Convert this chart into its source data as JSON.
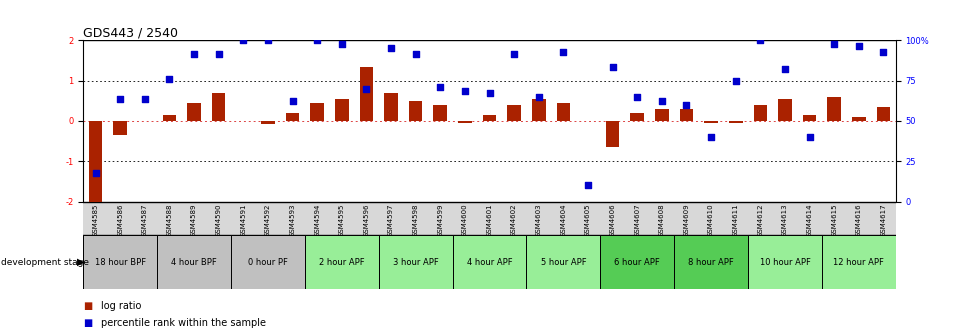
{
  "title": "GDS443 / 2540",
  "samples": [
    "GSM4585",
    "GSM4586",
    "GSM4587",
    "GSM4588",
    "GSM4589",
    "GSM4590",
    "GSM4591",
    "GSM4592",
    "GSM4593",
    "GSM4594",
    "GSM4595",
    "GSM4596",
    "GSM4597",
    "GSM4598",
    "GSM4599",
    "GSM4600",
    "GSM4601",
    "GSM4602",
    "GSM4603",
    "GSM4604",
    "GSM4605",
    "GSM4606",
    "GSM4607",
    "GSM4608",
    "GSM4609",
    "GSM4610",
    "GSM4611",
    "GSM4612",
    "GSM4613",
    "GSM4614",
    "GSM4615",
    "GSM4616",
    "GSM4617"
  ],
  "log_ratio": [
    -2.0,
    -0.35,
    0.0,
    0.15,
    0.45,
    0.7,
    0.0,
    -0.07,
    0.2,
    0.45,
    0.55,
    1.35,
    0.7,
    0.5,
    0.4,
    -0.05,
    0.15,
    0.4,
    0.55,
    0.45,
    0.0,
    -0.65,
    0.2,
    0.3,
    0.3,
    -0.05,
    -0.05,
    0.4,
    0.55,
    0.15,
    0.6,
    0.1,
    0.35
  ],
  "percentile": [
    -1.3,
    0.55,
    0.55,
    1.05,
    1.65,
    1.65,
    2.0,
    2.0,
    0.5,
    2.0,
    1.9,
    0.8,
    1.8,
    1.65,
    0.85,
    0.75,
    0.7,
    1.65,
    0.6,
    1.7,
    -1.6,
    1.35,
    0.6,
    0.5,
    0.4,
    -0.4,
    1.0,
    2.0,
    1.3,
    -0.4,
    1.9,
    1.85,
    1.7
  ],
  "stage_groups": [
    {
      "label": "18 hour BPF",
      "start": 0,
      "end": 3,
      "color": "#c0c0c0"
    },
    {
      "label": "4 hour BPF",
      "start": 3,
      "end": 6,
      "color": "#c0c0c0"
    },
    {
      "label": "0 hour PF",
      "start": 6,
      "end": 9,
      "color": "#c0c0c0"
    },
    {
      "label": "2 hour APF",
      "start": 9,
      "end": 12,
      "color": "#98ee98"
    },
    {
      "label": "3 hour APF",
      "start": 12,
      "end": 15,
      "color": "#98ee98"
    },
    {
      "label": "4 hour APF",
      "start": 15,
      "end": 18,
      "color": "#98ee98"
    },
    {
      "label": "5 hour APF",
      "start": 18,
      "end": 21,
      "color": "#98ee98"
    },
    {
      "label": "6 hour APF",
      "start": 21,
      "end": 24,
      "color": "#55cc55"
    },
    {
      "label": "8 hour APF",
      "start": 24,
      "end": 27,
      "color": "#55cc55"
    },
    {
      "label": "10 hour APF",
      "start": 27,
      "end": 30,
      "color": "#98ee98"
    },
    {
      "label": "12 hour APF",
      "start": 30,
      "end": 33,
      "color": "#98ee98"
    }
  ],
  "bar_color": "#aa2200",
  "dot_color": "#0000cc",
  "ylim": [
    -2.0,
    2.0
  ],
  "yticks_left": [
    -2,
    -1,
    0,
    1,
    2
  ],
  "hlines_dotted": [
    1.0,
    -1.0
  ],
  "zero_line_color": "#dd4444",
  "title_fontsize": 9,
  "tick_fontsize": 6,
  "label_fontsize": 7,
  "legend_fontsize": 7,
  "sample_bg_color": "#d8d8d8"
}
